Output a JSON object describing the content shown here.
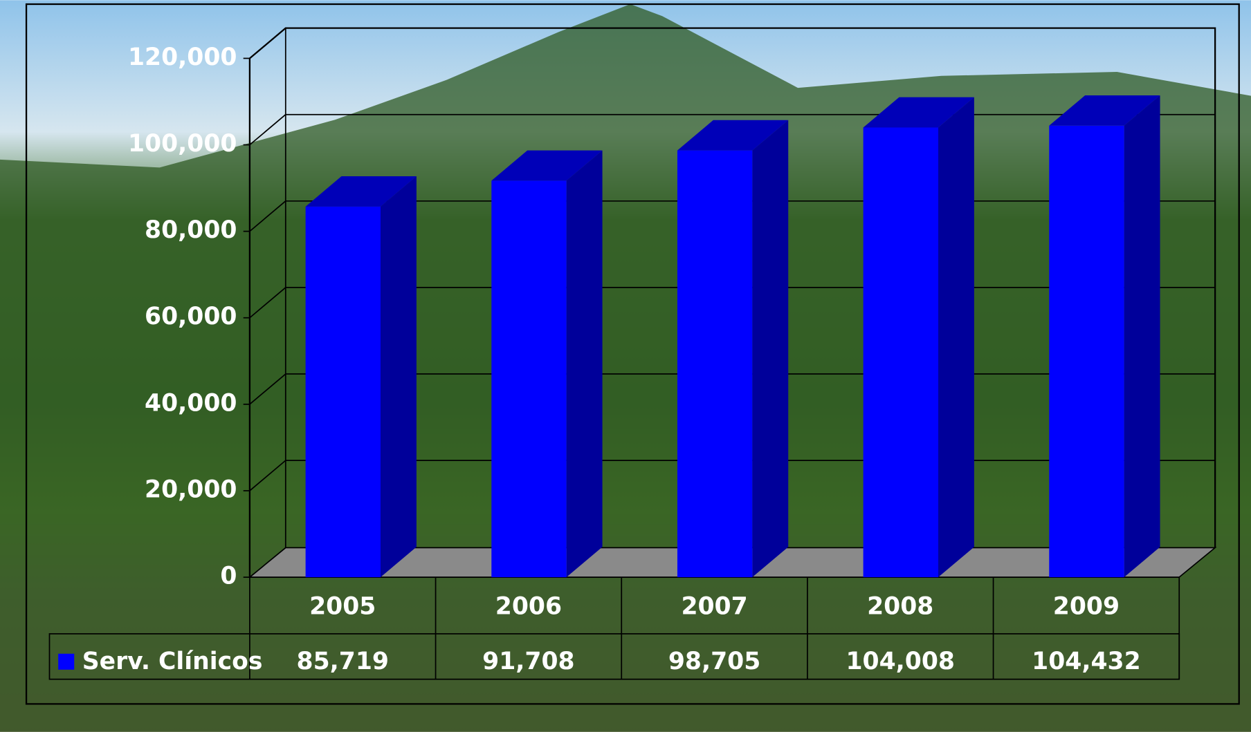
{
  "chart_data": {
    "type": "bar3d",
    "categories": [
      "2005",
      "2006",
      "2007",
      "2008",
      "2009"
    ],
    "series": [
      {
        "name": "Serv. Clínicos",
        "color": "#0000ff",
        "values": [
          85719,
          91708,
          98705,
          104008,
          104432
        ],
        "value_labels": [
          "85,719",
          "91,708",
          "98,705",
          "104,008",
          "104,432"
        ]
      }
    ],
    "ylim": [
      0,
      120000
    ],
    "yticks": [
      0,
      {
        "value": 20000,
        "label": "20,000"
      },
      {
        "value": 40000,
        "label": "40,000"
      },
      {
        "value": 60000,
        "label": "60,000"
      },
      {
        "value": 80000,
        "label": "80,000"
      },
      {
        "value": 100000,
        "label": "100,000"
      },
      {
        "value": 120000,
        "label": "120,000"
      }
    ],
    "grid": true
  }
}
